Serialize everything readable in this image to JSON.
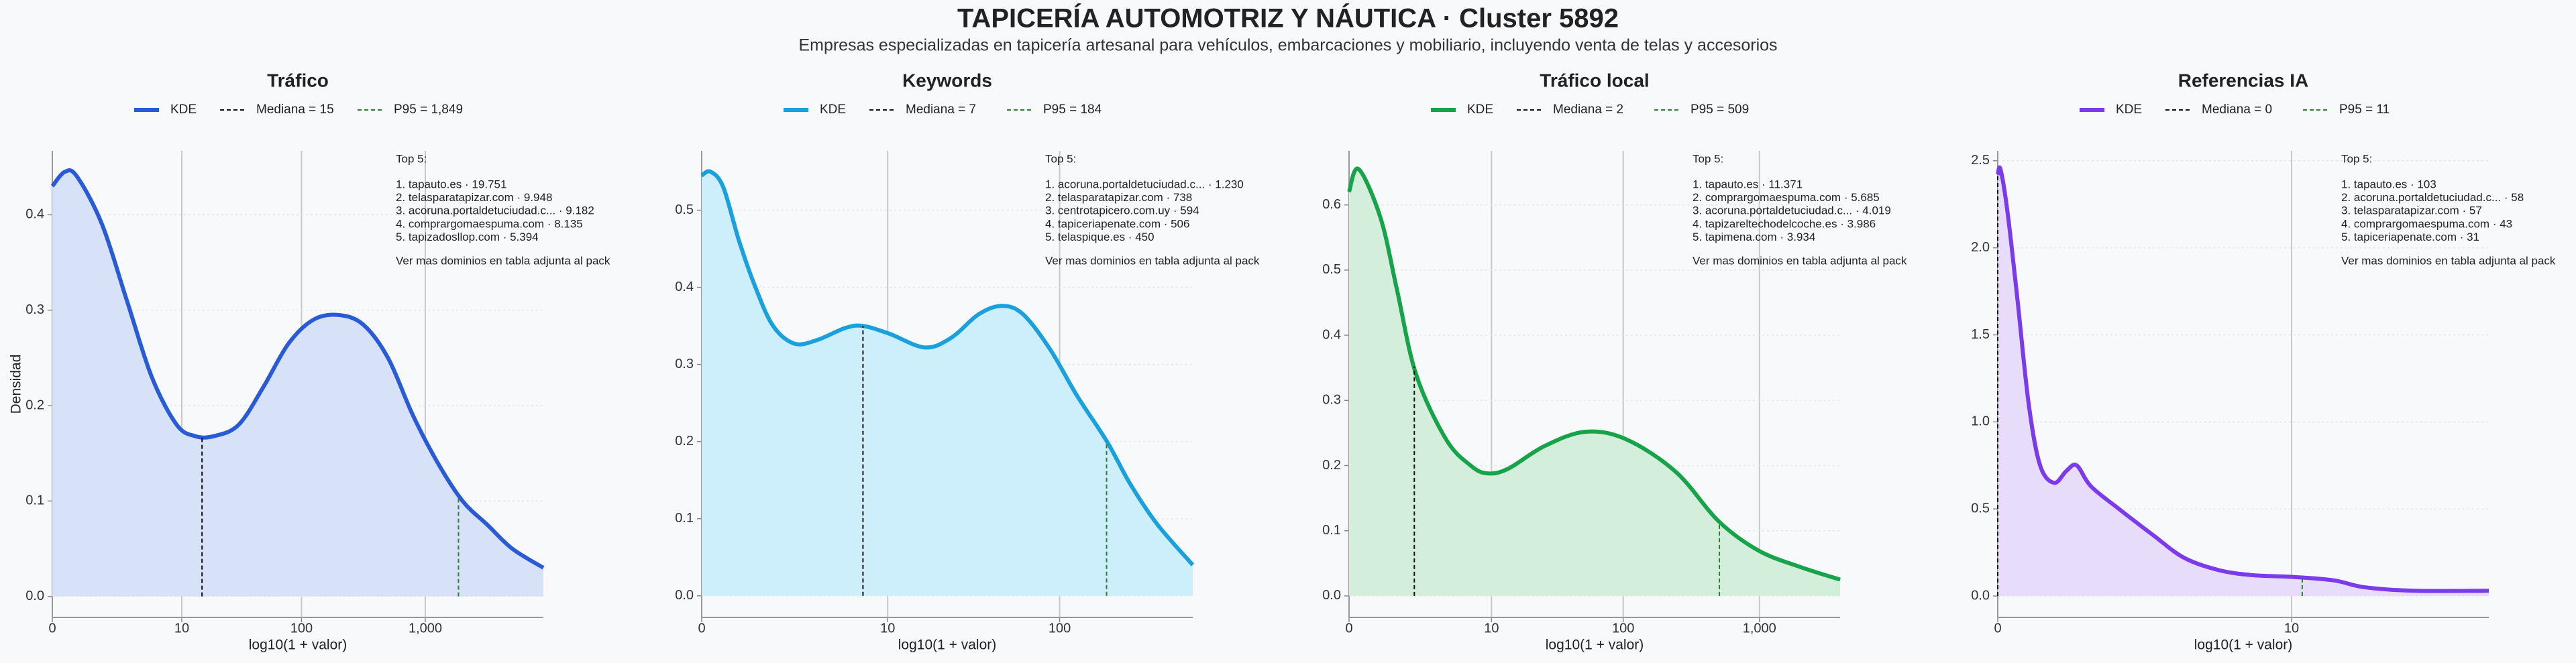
{
  "title": "TAPICERÍA AUTOMOTRIZ Y NÁUTICA · Cluster 5892",
  "subtitle": "Empresas especializadas en tapicería artesanal para vehículos, embarcaciones y mobiliario, incluyendo venta de telas y accesorios",
  "chart_data": [
    {
      "type": "line",
      "title": "Tráfico",
      "xlabel": "log10(1 + valor)",
      "ylabel": "Densidad",
      "xscale": "log1p",
      "grid": true,
      "fill": "#d7e1f8",
      "series": [
        {
          "name": "KDE",
          "color": "#2a5bd7",
          "x": [
            0,
            0.26,
            0.58,
            1.51,
            2.98,
            5.31,
            9,
            13.1,
            18.95,
            30.6,
            49.1,
            78.4,
            124.9,
            198.5,
            315.2,
            500.2,
            793.3,
            1258,
            1994,
            3161,
            5011,
            8912
          ],
          "values": [
            0.43,
            0.445,
            0.44,
            0.39,
            0.31,
            0.23,
            0.18,
            0.168,
            0.168,
            0.18,
            0.22,
            0.265,
            0.29,
            0.295,
            0.285,
            0.25,
            0.19,
            0.14,
            0.1,
            0.075,
            0.05,
            0.03
          ]
        }
      ],
      "median": {
        "value": 15,
        "label": "Mediana = 15"
      },
      "p95": {
        "value": 1849,
        "label": "P95 = 1,849"
      },
      "xlim": [
        0,
        8912
      ],
      "ylim": [
        -0.022,
        0.467
      ],
      "xticks": [
        0,
        10,
        100,
        {
          "value": 1000,
          "label": "1,000"
        }
      ],
      "yticks": [
        {
          "value": 0,
          "label": "0.0"
        },
        0.1,
        0.2,
        0.3,
        0.4
      ],
      "annotation": {
        "title": "Top 5:",
        "items": [
          "1. tapauto.es · 19.751",
          "2. telasparatapizar.com · 9.948",
          "3. acoruna.portaldetuciudad.c... · 9.182",
          "4. comprargomaespuma.com · 8.135",
          "5. tapizadosllop.com · 5.394"
        ],
        "note": "Ver mas dominios en tabla adjunta al pack"
      }
    },
    {
      "type": "line",
      "title": "Keywords",
      "xlabel": "log10(1 + valor)",
      "xscale": "log1p",
      "grid": true,
      "fill": "#cdeefb",
      "series": [
        {
          "name": "KDE",
          "color": "#1aa0dc",
          "x": [
            0,
            0.12,
            0.32,
            0.62,
            1.0,
            1.51,
            2.31,
            3.47,
            5.31,
            6.94,
            10.2,
            16.8,
            24.1,
            34.5,
            46.9,
            62.1,
            88.1,
            125,
            185,
            250,
            354,
            561
          ],
          "values": [
            0.545,
            0.55,
            0.53,
            0.46,
            0.4,
            0.35,
            0.327,
            0.332,
            0.347,
            0.35,
            0.34,
            0.322,
            0.335,
            0.365,
            0.376,
            0.365,
            0.32,
            0.26,
            0.2,
            0.145,
            0.093,
            0.04
          ]
        }
      ],
      "median": {
        "value": 7,
        "label": "Mediana = 7"
      },
      "p95": {
        "value": 184,
        "label": "P95 = 184"
      },
      "xlim": [
        0,
        561
      ],
      "ylim": [
        -0.028,
        0.577
      ],
      "xticks": [
        0,
        10,
        100
      ],
      "yticks": [
        {
          "value": 0,
          "label": "0.0"
        },
        0.1,
        0.2,
        0.3,
        0.4,
        0.5
      ],
      "annotation": {
        "title": "Top 5:",
        "items": [
          "1. acoruna.portaldetuciudad.c... · 1.230",
          "2. telasparatapizar.com · 738",
          "3. centrotapicero.com.uy · 594",
          "4. tapiceriapenate.com · 506",
          "5. telaspique.es · 450"
        ],
        "note": "Ver mas dominios en tabla adjunta al pack"
      }
    },
    {
      "type": "line",
      "title": "Tráfico local",
      "xlabel": "log10(1 + valor)",
      "xscale": "log1p",
      "grid": true,
      "fill": "#d3eedb",
      "series": [
        {
          "name": "KDE",
          "color": "#16a34a",
          "x": [
            0,
            0.175,
            0.7,
            1.24,
            2.09,
            4.13,
            6.76,
            9.23,
            13.5,
            25.9,
            52.7,
            106,
            245,
            500,
            976,
            1949,
            3890
          ],
          "values": [
            0.62,
            0.655,
            0.58,
            0.47,
            0.34,
            0.24,
            0.2,
            0.188,
            0.195,
            0.23,
            0.252,
            0.24,
            0.19,
            0.115,
            0.07,
            0.045,
            0.025
          ]
        }
      ],
      "median": {
        "value": 2,
        "label": "Mediana = 2"
      },
      "p95": {
        "value": 509,
        "label": "P95 = 509"
      },
      "xlim": [
        0,
        3890
      ],
      "ylim": [
        -0.033,
        0.683
      ],
      "xticks": [
        0,
        10,
        100,
        {
          "value": 1000,
          "label": "1,000"
        }
      ],
      "yticks": [
        {
          "value": 0,
          "label": "0.0"
        },
        0.1,
        0.2,
        0.3,
        0.4,
        0.5,
        0.6
      ],
      "annotation": {
        "title": "Top 5:",
        "items": [
          "1. tapauto.es · 11.371",
          "2. comprargomaespuma.com · 5.685",
          "3. acoruna.portaldetuciudad.c... · 4.019",
          "4. tapizareltechodelcoche.es · 3.986",
          "5. tapimena.com · 3.934"
        ],
        "note": "Ver mas dominios en tabla adjunta al pack"
      }
    },
    {
      "type": "line",
      "title": "Referencias IA",
      "xlabel": "log10(1 + valor)",
      "xscale": "log1p",
      "grid": true,
      "fill": "#e7dcf9",
      "series": [
        {
          "name": "KDE",
          "color": "#7c3aed",
          "x": [
            0,
            0.023,
            0.084,
            0.175,
            0.288,
            0.413,
            0.585,
            0.754,
            0.905,
            1.14,
            1.69,
            2.55,
            3.57,
            5.03,
            6.94,
            10,
            14.5,
            19,
            29.2,
            54
          ],
          "values": [
            2.42,
            2.45,
            2.2,
            1.7,
            1.1,
            0.75,
            0.65,
            0.72,
            0.75,
            0.63,
            0.5,
            0.35,
            0.22,
            0.15,
            0.12,
            0.11,
            0.09,
            0.05,
            0.03,
            0.03
          ]
        }
      ],
      "median": {
        "value": 0,
        "label": "Mediana = 0"
      },
      "p95": {
        "value": 11,
        "label": "P95 = 11"
      },
      "xlim": [
        0,
        54
      ],
      "ylim": [
        -0.123,
        2.557
      ],
      "xticks": [
        0,
        10
      ],
      "yticks": [
        {
          "value": 0,
          "label": "0.0"
        },
        0.5,
        {
          "value": 1,
          "label": "1.0"
        },
        1.5,
        {
          "value": 2,
          "label": "2.0"
        },
        2.5
      ],
      "annotation": {
        "title": "Top 5:",
        "items": [
          "1. tapauto.es · 103",
          "2. acoruna.portaldetuciudad.c... · 58",
          "3. telasparatapizar.com · 57",
          "4. comprargomaespuma.com · 43",
          "5. tapiceriapenate.com · 31"
        ],
        "note": "Ver mas dominios en tabla adjunta al pack"
      }
    }
  ]
}
